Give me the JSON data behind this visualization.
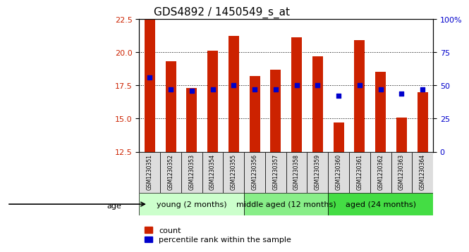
{
  "title": "GDS4892 / 1450549_s_at",
  "samples": [
    "GSM1230351",
    "GSM1230352",
    "GSM1230353",
    "GSM1230354",
    "GSM1230355",
    "GSM1230356",
    "GSM1230357",
    "GSM1230358",
    "GSM1230359",
    "GSM1230360",
    "GSM1230361",
    "GSM1230362",
    "GSM1230363",
    "GSM1230364"
  ],
  "counts": [
    22.5,
    19.3,
    17.3,
    20.1,
    21.2,
    18.2,
    18.7,
    21.1,
    19.7,
    14.7,
    20.9,
    18.5,
    15.1,
    17.0
  ],
  "percentiles": [
    56,
    47,
    46,
    47,
    50,
    47,
    47,
    50,
    50,
    42,
    50,
    47,
    44,
    47
  ],
  "ylim_left": [
    12.5,
    22.5
  ],
  "ylim_right": [
    0,
    100
  ],
  "yticks_left": [
    12.5,
    15.0,
    17.5,
    20.0,
    22.5
  ],
  "yticks_right": [
    0,
    25,
    50,
    75,
    100
  ],
  "ytick_labels_right": [
    "0",
    "25",
    "50",
    "75",
    "100%"
  ],
  "bar_color": "#cc2200",
  "dot_color": "#0000cc",
  "grid_color": "#333333",
  "groups": [
    {
      "label": "young (2 months)",
      "start": 0,
      "end": 5,
      "color": "#ccffcc"
    },
    {
      "label": "middle aged (12 months)",
      "start": 5,
      "end": 9,
      "color": "#88ee88"
    },
    {
      "label": "aged (24 months)",
      "start": 9,
      "end": 14,
      "color": "#44dd44"
    }
  ],
  "age_label": "age",
  "legend_count": "count",
  "legend_percentile": "percentile rank within the sample",
  "bar_width": 0.5,
  "title_fontsize": 11,
  "tick_fontsize": 8,
  "label_fontsize": 8,
  "group_label_fontsize": 8
}
